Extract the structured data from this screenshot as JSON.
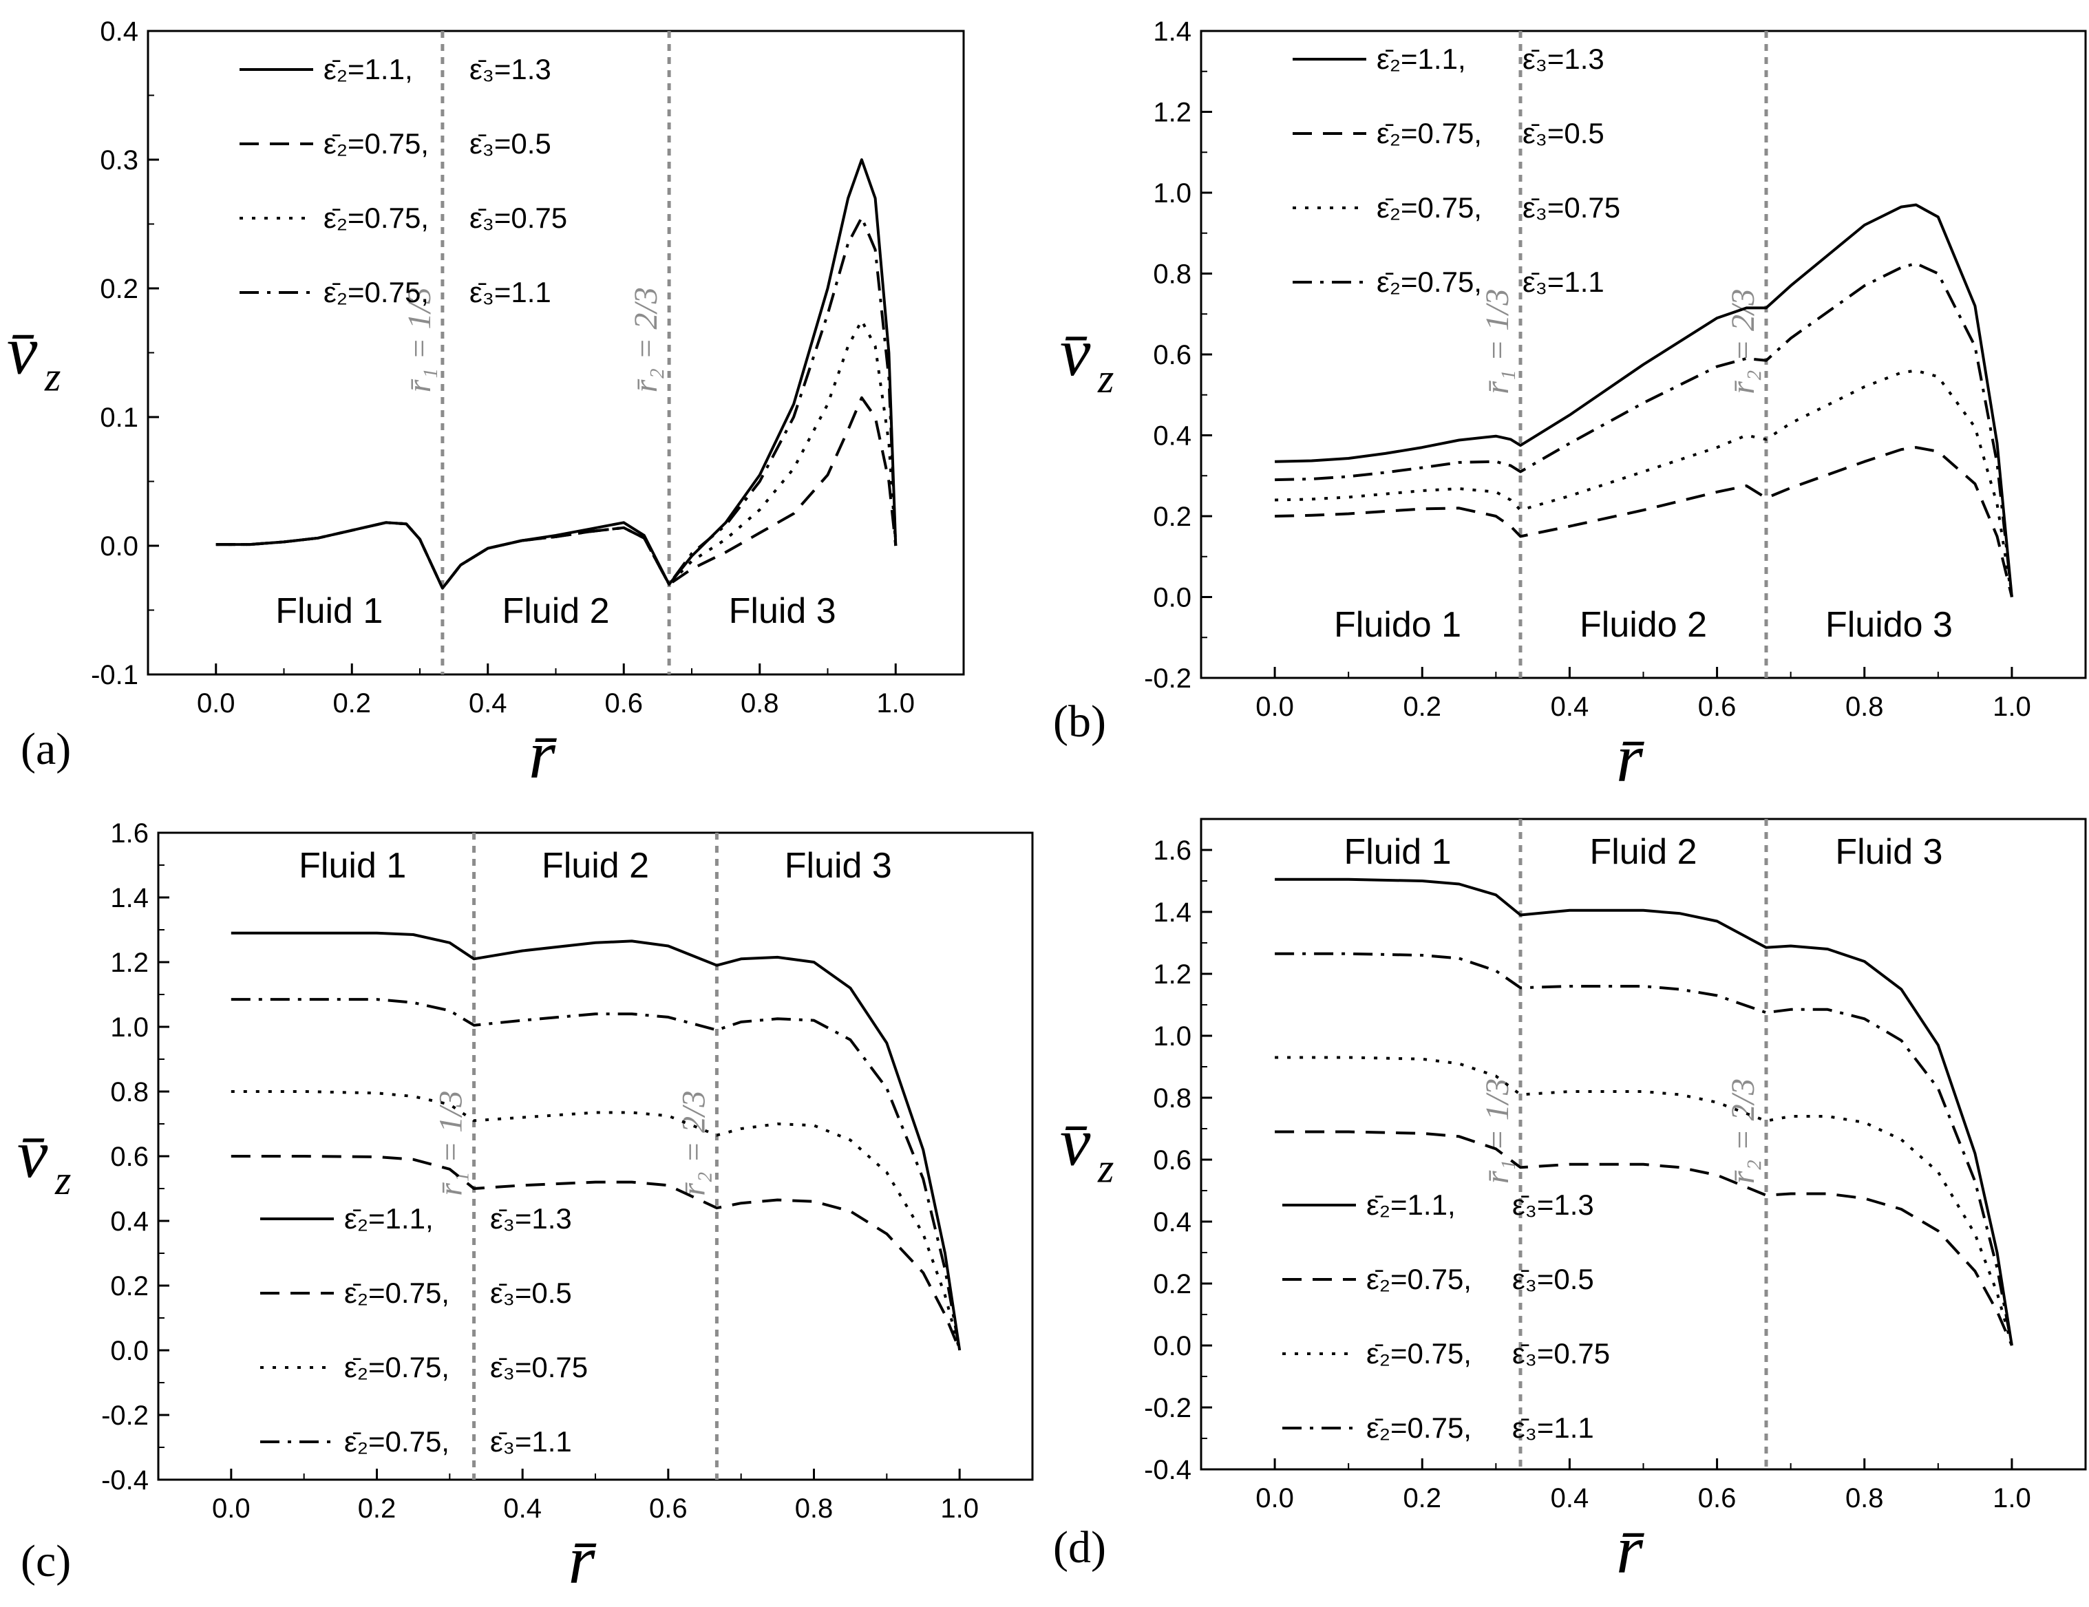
{
  "figure": {
    "series_styles": [
      {
        "key": "s1",
        "dash": "",
        "color": "#000000"
      },
      {
        "key": "s2",
        "dash": "28,16",
        "color": "#000000"
      },
      {
        "key": "s3",
        "dash": "5,13",
        "color": "#000000"
      },
      {
        "key": "s4",
        "dash": "28,12,5,12",
        "color": "#000000"
      }
    ],
    "interface_color": "#8c8c8c"
  },
  "chart_data": [
    {
      "type": "line",
      "panel_label": "(a)",
      "xlabel": "r̄",
      "ylabel": "v̄",
      "ylabel_sub": "z",
      "xlim": [
        -0.1,
        1.1
      ],
      "ylim": [
        -0.1,
        0.4
      ],
      "xticks": [
        "0.0",
        "0.2",
        "0.4",
        "0.6",
        "0.8",
        "1.0"
      ],
      "yticks": [
        "-0.1",
        "0.0",
        "0.1",
        "0.2",
        "0.3",
        "0.4"
      ],
      "interfaces": [
        {
          "x": 0.3333,
          "label": "r̄₁ = 1/3"
        },
        {
          "x": 0.6667,
          "label": "r̄₂ = 2/3"
        }
      ],
      "regions": [
        "Fluid 1",
        "Fluid 2",
        "Fluid 3"
      ],
      "legend": [
        {
          "eps2": "ε̄₂=1.1,",
          "eps3": "ε̄₃=1.3"
        },
        {
          "eps2": "ε̄₂=0.75,",
          "eps3": "ε̄₃=0.5"
        },
        {
          "eps2": "ε̄₂=0.75,",
          "eps3": "ε̄₃=0.75"
        },
        {
          "eps2": "ε̄₂=0.75,",
          "eps3": "ε̄₃=1.1"
        }
      ],
      "x": [
        0,
        0.05,
        0.1,
        0.15,
        0.2,
        0.25,
        0.28,
        0.3,
        0.3333,
        0.36,
        0.4,
        0.45,
        0.5,
        0.55,
        0.6,
        0.63,
        0.6667,
        0.7,
        0.75,
        0.8,
        0.85,
        0.9,
        0.93,
        0.95,
        0.97,
        0.99,
        1.0
      ],
      "series": [
        {
          "name": "ε̄₂=1.1, ε̄₃=1.3",
          "values": [
            0.001,
            0.001,
            0.003,
            0.006,
            0.012,
            0.018,
            0.017,
            0.005,
            -0.033,
            -0.015,
            -0.002,
            0.004,
            0.008,
            0.013,
            0.018,
            0.008,
            -0.03,
            -0.008,
            0.018,
            0.055,
            0.11,
            0.2,
            0.27,
            0.3,
            0.27,
            0.15,
            0.0
          ]
        },
        {
          "name": "ε̄₂=0.75, ε̄₃=0.5",
          "values": [
            0.001,
            0.001,
            0.003,
            0.006,
            0.012,
            0.018,
            0.017,
            0.005,
            -0.033,
            -0.015,
            -0.002,
            0.004,
            0.007,
            0.011,
            0.014,
            0.006,
            -0.03,
            -0.018,
            -0.005,
            0.01,
            0.025,
            0.055,
            0.09,
            0.115,
            0.1,
            0.05,
            0.0
          ]
        },
        {
          "name": "ε̄₂=0.75, ε̄₃=0.75",
          "values": [
            0.001,
            0.001,
            0.003,
            0.006,
            0.012,
            0.018,
            0.017,
            0.005,
            -0.033,
            -0.015,
            -0.002,
            0.004,
            0.007,
            0.011,
            0.014,
            0.006,
            -0.03,
            -0.012,
            0.005,
            0.028,
            0.06,
            0.11,
            0.155,
            0.175,
            0.155,
            0.08,
            0.0
          ]
        },
        {
          "name": "ε̄₂=0.75, ε̄₃=1.1",
          "values": [
            0.001,
            0.001,
            0.003,
            0.006,
            0.012,
            0.018,
            0.017,
            0.005,
            -0.033,
            -0.015,
            -0.002,
            0.004,
            0.007,
            0.011,
            0.014,
            0.006,
            -0.03,
            -0.006,
            0.016,
            0.05,
            0.1,
            0.18,
            0.235,
            0.255,
            0.23,
            0.13,
            0.0
          ]
        }
      ]
    },
    {
      "type": "line",
      "panel_label": "(b)",
      "xlabel": "r̄",
      "ylabel": "v̄",
      "ylabel_sub": "z",
      "xlim": [
        -0.1,
        1.1
      ],
      "ylim": [
        -0.2,
        1.4
      ],
      "xticks": [
        "0.0",
        "0.2",
        "0.4",
        "0.6",
        "0.8",
        "1.0"
      ],
      "yticks": [
        "-0.2",
        "0.0",
        "0.2",
        "0.4",
        "0.6",
        "0.8",
        "1.0",
        "1.2",
        "1.4"
      ],
      "interfaces": [
        {
          "x": 0.3333,
          "label": "r̄₁ = 1/3"
        },
        {
          "x": 0.6667,
          "label": "r̄₂ = 2/3"
        }
      ],
      "regions": [
        "Fluido 1",
        "Fluido 2",
        "Fluido 3"
      ],
      "legend": [
        {
          "eps2": "ε̄₂=1.1,",
          "eps3": "ε̄₃=1.3"
        },
        {
          "eps2": "ε̄₂=0.75,",
          "eps3": "ε̄₃=0.5"
        },
        {
          "eps2": "ε̄₂=0.75,",
          "eps3": "ε̄₃=0.75"
        },
        {
          "eps2": "ε̄₂=0.75,",
          "eps3": "ε̄₃=1.1"
        }
      ],
      "x": [
        0,
        0.05,
        0.1,
        0.15,
        0.2,
        0.25,
        0.3,
        0.32,
        0.3333,
        0.4,
        0.5,
        0.6,
        0.64,
        0.6667,
        0.7,
        0.8,
        0.85,
        0.87,
        0.9,
        0.95,
        0.98,
        1.0
      ],
      "series": [
        {
          "name": "ε̄₂=1.1, ε̄₃=1.3",
          "values": [
            0.335,
            0.337,
            0.343,
            0.355,
            0.37,
            0.388,
            0.398,
            0.39,
            0.375,
            0.45,
            0.575,
            0.69,
            0.715,
            0.715,
            0.77,
            0.92,
            0.965,
            0.97,
            0.94,
            0.72,
            0.38,
            0.0
          ]
        },
        {
          "name": "ε̄₂=0.75, ε̄₃=0.5",
          "values": [
            0.2,
            0.202,
            0.206,
            0.212,
            0.218,
            0.22,
            0.2,
            0.175,
            0.15,
            0.175,
            0.215,
            0.26,
            0.275,
            0.245,
            0.27,
            0.335,
            0.365,
            0.37,
            0.36,
            0.28,
            0.15,
            0.0
          ]
        },
        {
          "name": "ε̄₂=0.75, ε̄₃=0.75",
          "values": [
            0.24,
            0.242,
            0.247,
            0.255,
            0.263,
            0.268,
            0.26,
            0.24,
            0.215,
            0.25,
            0.31,
            0.37,
            0.4,
            0.39,
            0.43,
            0.52,
            0.555,
            0.56,
            0.545,
            0.42,
            0.23,
            0.0
          ]
        },
        {
          "name": "ε̄₂=0.75, ε̄₃=1.1",
          "values": [
            0.29,
            0.292,
            0.298,
            0.308,
            0.32,
            0.333,
            0.335,
            0.325,
            0.31,
            0.38,
            0.48,
            0.57,
            0.59,
            0.585,
            0.64,
            0.77,
            0.815,
            0.825,
            0.8,
            0.62,
            0.33,
            0.0
          ]
        }
      ]
    },
    {
      "type": "line",
      "panel_label": "(c)",
      "xlabel": "r̄",
      "ylabel": "v̄",
      "ylabel_sub": "z",
      "xlim": [
        -0.1,
        1.1
      ],
      "ylim": [
        -0.4,
        1.6
      ],
      "xticks": [
        "0.0",
        "0.2",
        "0.4",
        "0.6",
        "0.8",
        "1.0"
      ],
      "yticks": [
        "-0.4",
        "-0.2",
        "0.0",
        "0.2",
        "0.4",
        "0.6",
        "0.8",
        "1.0",
        "1.2",
        "1.4",
        "1.6"
      ],
      "interfaces": [
        {
          "x": 0.3333,
          "label": "r̄₁ = 1/3"
        },
        {
          "x": 0.6667,
          "label": "r̄₂ = 2/3"
        }
      ],
      "regions": [
        "Fluid 1",
        "Fluid 2",
        "Fluid 3"
      ],
      "legend": [
        {
          "eps2": "ε̄₂=1.1,",
          "eps3": "ε̄₃=1.3"
        },
        {
          "eps2": "ε̄₂=0.75,",
          "eps3": "ε̄₃=0.5"
        },
        {
          "eps2": "ε̄₂=0.75,",
          "eps3": "ε̄₃=0.75"
        },
        {
          "eps2": "ε̄₂=0.75,",
          "eps3": "ε̄₃=1.1"
        }
      ],
      "x": [
        0,
        0.1,
        0.2,
        0.25,
        0.3,
        0.3333,
        0.4,
        0.5,
        0.55,
        0.6,
        0.6667,
        0.7,
        0.75,
        0.8,
        0.85,
        0.9,
        0.95,
        0.98,
        1.0
      ],
      "series": [
        {
          "name": "ε̄₂=1.1, ε̄₃=1.3",
          "values": [
            1.29,
            1.29,
            1.29,
            1.285,
            1.26,
            1.21,
            1.235,
            1.26,
            1.265,
            1.25,
            1.19,
            1.21,
            1.215,
            1.2,
            1.12,
            0.95,
            0.62,
            0.3,
            0.0
          ]
        },
        {
          "name": "ε̄₂=0.75, ε̄₃=0.5",
          "values": [
            0.6,
            0.6,
            0.598,
            0.59,
            0.56,
            0.5,
            0.51,
            0.52,
            0.52,
            0.51,
            0.44,
            0.455,
            0.465,
            0.46,
            0.43,
            0.36,
            0.24,
            0.11,
            0.0
          ]
        },
        {
          "name": "ε̄₂=0.75, ε̄₃=0.75",
          "values": [
            0.8,
            0.8,
            0.795,
            0.785,
            0.76,
            0.71,
            0.72,
            0.735,
            0.735,
            0.725,
            0.665,
            0.685,
            0.7,
            0.695,
            0.65,
            0.55,
            0.36,
            0.17,
            0.0
          ]
        },
        {
          "name": "ε̄₂=0.75, ε̄₃=1.1",
          "values": [
            1.085,
            1.085,
            1.085,
            1.075,
            1.05,
            1.005,
            1.02,
            1.04,
            1.04,
            1.03,
            0.99,
            1.015,
            1.025,
            1.02,
            0.96,
            0.81,
            0.53,
            0.25,
            0.0
          ]
        }
      ]
    },
    {
      "type": "line",
      "panel_label": "(d)",
      "xlabel": "r̄",
      "ylabel": "v̄",
      "ylabel_sub": "z",
      "xlim": [
        -0.1,
        1.1
      ],
      "ylim": [
        -0.4,
        1.7
      ],
      "xticks": [
        "0.0",
        "0.2",
        "0.4",
        "0.6",
        "0.8",
        "1.0"
      ],
      "yticks": [
        "-0.4",
        "-0.2",
        "0.0",
        "0.2",
        "0.4",
        "0.6",
        "0.8",
        "1.0",
        "1.2",
        "1.4",
        "1.6"
      ],
      "interfaces": [
        {
          "x": 0.3333,
          "label": "r̄₁ = 1/3"
        },
        {
          "x": 0.6667,
          "label": "r̄₂ = 2/3"
        }
      ],
      "regions": [
        "Fluid 1",
        "Fluid 2",
        "Fluid 3"
      ],
      "legend": [
        {
          "eps2": "ε̄₂=1.1,",
          "eps3": "ε̄₃=1.3"
        },
        {
          "eps2": "ε̄₂=0.75,",
          "eps3": "ε̄₃=0.5"
        },
        {
          "eps2": "ε̄₂=0.75,",
          "eps3": "ε̄₃=0.75"
        },
        {
          "eps2": "ε̄₂=0.75,",
          "eps3": "ε̄₃=1.1"
        }
      ],
      "x": [
        0,
        0.1,
        0.2,
        0.25,
        0.3,
        0.3333,
        0.4,
        0.5,
        0.55,
        0.6,
        0.6667,
        0.7,
        0.75,
        0.8,
        0.85,
        0.9,
        0.95,
        0.98,
        1.0
      ],
      "series": [
        {
          "name": "ε̄₂=1.1, ε̄₃=1.3",
          "values": [
            1.505,
            1.505,
            1.5,
            1.49,
            1.455,
            1.39,
            1.405,
            1.405,
            1.395,
            1.37,
            1.285,
            1.29,
            1.28,
            1.24,
            1.15,
            0.97,
            0.62,
            0.3,
            0.0
          ]
        },
        {
          "name": "ε̄₂=0.75, ε̄₃=0.5",
          "values": [
            0.69,
            0.69,
            0.685,
            0.675,
            0.635,
            0.575,
            0.585,
            0.585,
            0.575,
            0.55,
            0.485,
            0.49,
            0.49,
            0.475,
            0.44,
            0.37,
            0.24,
            0.11,
            0.0
          ]
        },
        {
          "name": "ε̄₂=0.75, ε̄₃=0.75",
          "values": [
            0.93,
            0.93,
            0.925,
            0.91,
            0.87,
            0.81,
            0.82,
            0.82,
            0.81,
            0.785,
            0.725,
            0.74,
            0.74,
            0.72,
            0.665,
            0.56,
            0.36,
            0.17,
            0.0
          ]
        },
        {
          "name": "ε̄₂=0.75, ε̄₃=1.1",
          "values": [
            1.265,
            1.265,
            1.26,
            1.25,
            1.21,
            1.155,
            1.16,
            1.16,
            1.15,
            1.13,
            1.075,
            1.085,
            1.085,
            1.055,
            0.985,
            0.83,
            0.53,
            0.25,
            0.0
          ]
        }
      ]
    }
  ]
}
